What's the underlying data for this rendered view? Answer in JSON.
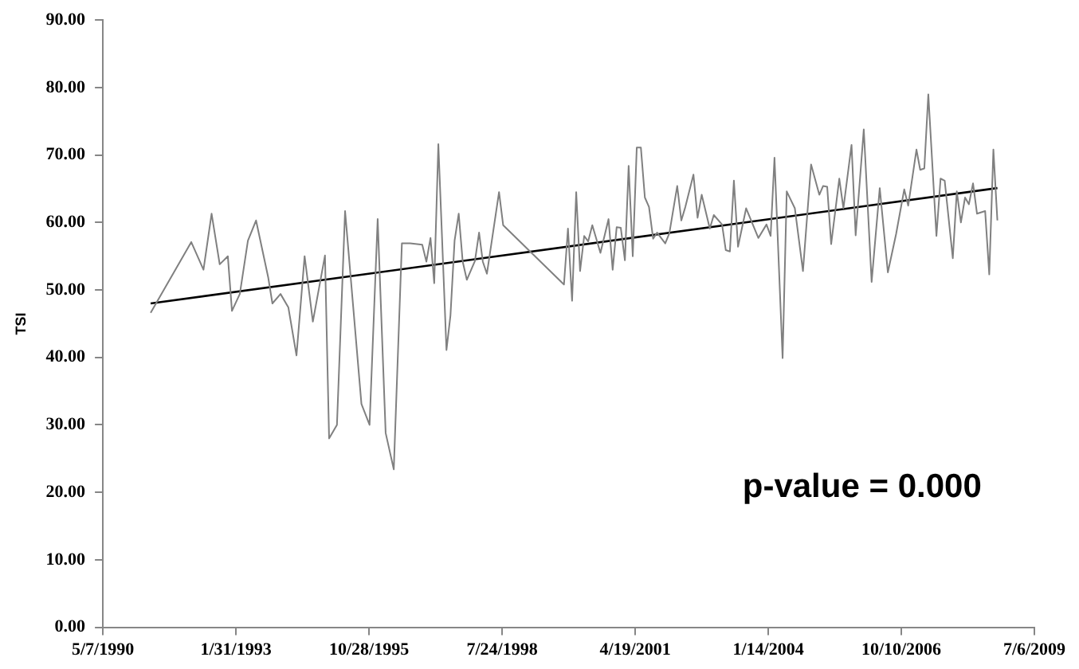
{
  "chart_data": {
    "type": "line",
    "ylabel": "TSI",
    "annotations": [
      "p-value = 0.000"
    ],
    "ylim": [
      0,
      90
    ],
    "yticks": [
      {
        "value": 0,
        "label": "0.00"
      },
      {
        "value": 10,
        "label": "10.00"
      },
      {
        "value": 20,
        "label": "20.00"
      },
      {
        "value": 30,
        "label": "30.00"
      },
      {
        "value": 40,
        "label": "40.00"
      },
      {
        "value": 50,
        "label": "50.00"
      },
      {
        "value": 60,
        "label": "60.00"
      },
      {
        "value": 70,
        "label": "70.00"
      },
      {
        "value": 80,
        "label": "80.00"
      },
      {
        "value": 90,
        "label": "90.00"
      }
    ],
    "xlim": [
      "1990-05-07",
      "2009-07-06"
    ],
    "xticks": [
      {
        "value": "1990-05-07",
        "label": "5/7/1990"
      },
      {
        "value": "1993-01-31",
        "label": "1/31/1993"
      },
      {
        "value": "1995-10-28",
        "label": "10/28/1995"
      },
      {
        "value": "1998-07-24",
        "label": "7/24/1998"
      },
      {
        "value": "2001-04-19",
        "label": "4/19/2001"
      },
      {
        "value": "2004-01-14",
        "label": "1/14/2004"
      },
      {
        "value": "2006-10-10",
        "label": "10/10/2006"
      },
      {
        "value": "2009-07-06",
        "label": "7/6/2009"
      }
    ],
    "grid": false,
    "legend": false,
    "marker": "none",
    "line_style": "solid",
    "series": [
      {
        "color": "#808080",
        "x": [
          "1991-05",
          "1992-03",
          "1992-06",
          "1992-08",
          "1992-10",
          "1992-12",
          "1993-01",
          "1993-03",
          "1993-05",
          "1993-07",
          "1993-10",
          "1993-11",
          "1994-01",
          "1994-03",
          "1994-05",
          "1994-07",
          "1994-09",
          "1994-12",
          "1995-01",
          "1995-03",
          "1995-05",
          "1995-09",
          "1995-11",
          "1996-01",
          "1996-03",
          "1996-05",
          "1996-07",
          "1996-09",
          "1996-12",
          "1997-01",
          "1997-02",
          "1997-03",
          "1997-04",
          "1997-06",
          "1997-07",
          "1997-08",
          "1997-09",
          "1997-10",
          "1997-11",
          "1998-01",
          "1998-02",
          "1998-03",
          "1998-04",
          "1998-07",
          "1998-08",
          "1999-11",
          "1999-12",
          "2000-01",
          "2000-02",
          "2000-03",
          "2000-04",
          "2000-05",
          "2000-06",
          "2000-08",
          "2000-10",
          "2000-11",
          "2000-12",
          "2001-01",
          "2001-02",
          "2001-03",
          "2001-04",
          "2001-05",
          "2001-06",
          "2001-07",
          "2001-08",
          "2001-09",
          "2001-10",
          "2001-12",
          "2002-01",
          "2002-03",
          "2002-04",
          "2002-05",
          "2002-07",
          "2002-08",
          "2002-09",
          "2002-11",
          "2002-12",
          "2003-02",
          "2003-03",
          "2003-04",
          "2003-05",
          "2003-06",
          "2003-08",
          "2003-11",
          "2004-01",
          "2004-02",
          "2004-03",
          "2004-05",
          "2004-06",
          "2004-08",
          "2004-10",
          "2004-12",
          "2005-02",
          "2005-03",
          "2005-04",
          "2005-05",
          "2005-07",
          "2005-08",
          "2005-10",
          "2005-11",
          "2006-01",
          "2006-03",
          "2006-05",
          "2006-07",
          "2006-09",
          "2006-11",
          "2006-12",
          "2007-02",
          "2007-03",
          "2007-04",
          "2007-05",
          "2007-07",
          "2007-08",
          "2007-09",
          "2007-11",
          "2007-12",
          "2008-01",
          "2008-02",
          "2008-03",
          "2008-04",
          "2008-05",
          "2008-07",
          "2008-08",
          "2008-09",
          "2008-10"
        ],
        "values": [
          46.6,
          57.1,
          53.0,
          61.3,
          53.8,
          55.0,
          46.9,
          49.4,
          57.3,
          60.3,
          51.8,
          48.0,
          49.4,
          47.4,
          40.3,
          55.0,
          45.3,
          55.1,
          28.0,
          30.0,
          61.7,
          33.1,
          30.0,
          60.5,
          28.8,
          23.4,
          56.9,
          56.9,
          56.7,
          54.2,
          57.7,
          51.0,
          71.6,
          41.1,
          46.2,
          57.3,
          61.3,
          54.2,
          51.5,
          54.3,
          58.5,
          54.2,
          52.4,
          64.5,
          59.6,
          50.8,
          59.1,
          48.4,
          64.5,
          52.8,
          58.0,
          57.2,
          59.6,
          55.5,
          60.5,
          53.0,
          59.3,
          59.2,
          54.4,
          68.4,
          55.0,
          71.1,
          71.1,
          63.7,
          62.3,
          57.6,
          58.5,
          56.9,
          58.4,
          65.4,
          60.3,
          62.3,
          67.1,
          60.7,
          64.1,
          59.1,
          61.1,
          59.7,
          55.9,
          55.7,
          66.2,
          56.4,
          62.1,
          57.7,
          59.7,
          58.0,
          69.6,
          39.9,
          64.6,
          62.1,
          52.8,
          68.6,
          64.1,
          65.4,
          65.3,
          56.8,
          66.5,
          62.1,
          71.5,
          58.1,
          73.8,
          51.2,
          65.1,
          52.6,
          58.3,
          64.9,
          62.5,
          70.8,
          67.8,
          68.0,
          79.0,
          58.0,
          66.5,
          66.2,
          54.7,
          64.6,
          60.0,
          63.7,
          62.7,
          65.8,
          61.3,
          61.7,
          52.3,
          70.8,
          60.3
        ]
      },
      {
        "color": "#000000",
        "x": [
          "1991-05",
          "2008-10"
        ],
        "values": [
          48.0,
          65.1
        ]
      }
    ]
  }
}
